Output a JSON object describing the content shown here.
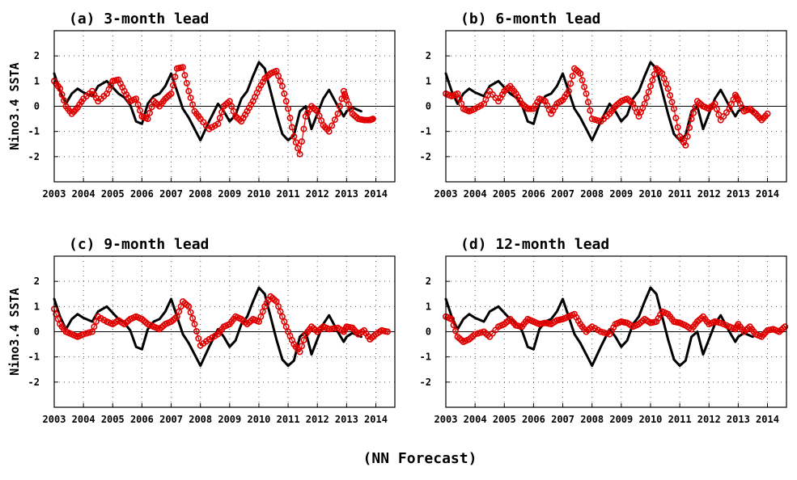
{
  "figure": {
    "footer": "(NN Forecast)",
    "colors": {
      "observed": "#000000",
      "forecast": "#e00000",
      "grid": "#555555",
      "frame": "#000000"
    }
  },
  "chart_data": [
    {
      "type": "line",
      "title": "(a) 3-month lead",
      "ylabel": "Nino3.4 SSTA",
      "xlim": [
        2003.0,
        2014.65
      ],
      "ylim": [
        -3,
        3
      ],
      "x_ticks": [
        2003,
        2004,
        2005,
        2006,
        2007,
        2008,
        2009,
        2010,
        2011,
        2012,
        2013,
        2014
      ],
      "y_ticks": [
        -2,
        -1,
        0,
        1,
        2
      ],
      "grid": true,
      "series": [
        {
          "style": "solid-line",
          "color": "#000000",
          "x": [
            2003.0,
            2003.2,
            2003.4,
            2003.6,
            2003.8,
            2004.0,
            2004.3,
            2004.5,
            2004.8,
            2005.0,
            2005.2,
            2005.4,
            2005.6,
            2005.8,
            2006.0,
            2006.2,
            2006.4,
            2006.6,
            2006.8,
            2007.0,
            2007.2,
            2007.4,
            2007.6,
            2007.8,
            2008.0,
            2008.3,
            2008.6,
            2008.8,
            2009.0,
            2009.2,
            2009.4,
            2009.6,
            2009.8,
            2010.0,
            2010.2,
            2010.4,
            2010.6,
            2010.8,
            2011.0,
            2011.2,
            2011.4,
            2011.6,
            2011.8,
            2012.0,
            2012.2,
            2012.4,
            2012.7,
            2012.9,
            2013.0,
            2013.2,
            2013.4,
            2013.5
          ],
          "y": [
            1.3,
            0.6,
            0.1,
            0.5,
            0.7,
            0.55,
            0.4,
            0.8,
            1.0,
            0.75,
            0.5,
            0.35,
            0.05,
            -0.6,
            -0.7,
            0.1,
            0.4,
            0.5,
            0.8,
            1.3,
            0.6,
            -0.1,
            -0.45,
            -0.9,
            -1.35,
            -0.6,
            0.1,
            -0.2,
            -0.6,
            -0.35,
            0.3,
            0.6,
            1.2,
            1.75,
            1.5,
            0.6,
            -0.3,
            -1.1,
            -1.35,
            -1.15,
            -0.2,
            0.0,
            -0.9,
            -0.3,
            0.3,
            0.65,
            0.0,
            -0.4,
            -0.2,
            -0.05,
            -0.15,
            -0.2
          ]
        },
        {
          "style": "circle-markers",
          "color": "#e00000",
          "x": [
            2003.0,
            2003.2,
            2003.4,
            2003.6,
            2003.8,
            2004.0,
            2004.3,
            2004.5,
            2004.8,
            2005.0,
            2005.2,
            2005.4,
            2005.6,
            2005.8,
            2006.0,
            2006.2,
            2006.4,
            2006.6,
            2006.8,
            2007.0,
            2007.2,
            2007.4,
            2007.6,
            2007.8,
            2008.0,
            2008.3,
            2008.6,
            2008.8,
            2009.0,
            2009.2,
            2009.4,
            2009.6,
            2009.8,
            2010.0,
            2010.2,
            2010.4,
            2010.6,
            2010.8,
            2011.0,
            2011.2,
            2011.4,
            2011.6,
            2011.8,
            2012.0,
            2012.2,
            2012.4,
            2012.7,
            2012.9,
            2013.0,
            2013.2,
            2013.4,
            2013.6,
            2013.8,
            2013.9
          ],
          "y": [
            1.0,
            0.7,
            0.0,
            -0.3,
            -0.05,
            0.3,
            0.6,
            0.2,
            0.5,
            1.0,
            1.05,
            0.6,
            0.2,
            0.3,
            -0.4,
            -0.5,
            0.2,
            0.0,
            0.3,
            0.5,
            1.5,
            1.55,
            0.6,
            -0.2,
            -0.5,
            -0.9,
            -0.7,
            0.0,
            0.2,
            -0.4,
            -0.6,
            -0.2,
            0.2,
            0.7,
            1.1,
            1.3,
            1.4,
            0.8,
            -0.1,
            -1.2,
            -1.9,
            -0.4,
            0.0,
            -0.2,
            -0.75,
            -1.0,
            -0.3,
            0.6,
            0.25,
            -0.3,
            -0.5,
            -0.55,
            -0.55,
            -0.5
          ]
        }
      ]
    },
    {
      "type": "line",
      "title": "(b) 6-month lead",
      "ylabel": "",
      "xlim": [
        2003.0,
        2014.65
      ],
      "ylim": [
        -3,
        3
      ],
      "x_ticks": [
        2003,
        2004,
        2005,
        2006,
        2007,
        2008,
        2009,
        2010,
        2011,
        2012,
        2013,
        2014
      ],
      "y_ticks": [
        -2,
        -1,
        0,
        1,
        2
      ],
      "grid": true,
      "series": [
        {
          "style": "solid-line",
          "color": "#000000",
          "x": [
            2003.0,
            2003.2,
            2003.4,
            2003.6,
            2003.8,
            2004.0,
            2004.3,
            2004.5,
            2004.8,
            2005.0,
            2005.2,
            2005.4,
            2005.6,
            2005.8,
            2006.0,
            2006.2,
            2006.4,
            2006.6,
            2006.8,
            2007.0,
            2007.2,
            2007.4,
            2007.6,
            2007.8,
            2008.0,
            2008.3,
            2008.6,
            2008.8,
            2009.0,
            2009.2,
            2009.4,
            2009.6,
            2009.8,
            2010.0,
            2010.2,
            2010.4,
            2010.6,
            2010.8,
            2011.0,
            2011.2,
            2011.4,
            2011.6,
            2011.8,
            2012.0,
            2012.2,
            2012.4,
            2012.7,
            2012.9,
            2013.0,
            2013.2,
            2013.4,
            2013.5
          ],
          "y": [
            1.3,
            0.6,
            0.1,
            0.5,
            0.7,
            0.55,
            0.4,
            0.8,
            1.0,
            0.75,
            0.5,
            0.35,
            0.05,
            -0.6,
            -0.7,
            0.1,
            0.4,
            0.5,
            0.8,
            1.3,
            0.6,
            -0.1,
            -0.45,
            -0.9,
            -1.35,
            -0.6,
            0.1,
            -0.2,
            -0.6,
            -0.35,
            0.3,
            0.6,
            1.2,
            1.75,
            1.5,
            0.6,
            -0.3,
            -1.1,
            -1.35,
            -1.15,
            -0.2,
            0.0,
            -0.9,
            -0.3,
            0.3,
            0.65,
            0.0,
            -0.4,
            -0.2,
            -0.05,
            -0.15,
            -0.2
          ]
        },
        {
          "style": "circle-markers",
          "color": "#e00000",
          "x": [
            2003.0,
            2003.2,
            2003.4,
            2003.6,
            2003.8,
            2004.0,
            2004.3,
            2004.5,
            2004.8,
            2005.0,
            2005.2,
            2005.4,
            2005.6,
            2005.8,
            2006.0,
            2006.2,
            2006.4,
            2006.6,
            2006.8,
            2007.0,
            2007.2,
            2007.4,
            2007.6,
            2007.8,
            2008.0,
            2008.3,
            2008.6,
            2008.8,
            2009.0,
            2009.2,
            2009.4,
            2009.6,
            2009.8,
            2010.0,
            2010.2,
            2010.4,
            2010.6,
            2010.8,
            2011.0,
            2011.2,
            2011.4,
            2011.6,
            2011.8,
            2012.0,
            2012.2,
            2012.4,
            2012.7,
            2012.9,
            2013.0,
            2013.2,
            2013.4,
            2013.6,
            2013.8,
            2014.0
          ],
          "y": [
            0.5,
            0.4,
            0.5,
            -0.1,
            -0.2,
            -0.1,
            0.1,
            0.6,
            0.2,
            0.6,
            0.8,
            0.5,
            0.1,
            -0.1,
            -0.1,
            0.3,
            0.2,
            -0.3,
            0.1,
            0.25,
            0.6,
            1.5,
            1.3,
            0.5,
            -0.5,
            -0.6,
            -0.3,
            0.0,
            0.2,
            0.3,
            0.1,
            -0.4,
            0.1,
            0.8,
            1.5,
            1.3,
            0.7,
            -0.1,
            -1.2,
            -1.55,
            -0.5,
            0.2,
            0.0,
            -0.1,
            0.1,
            -0.55,
            -0.1,
            0.45,
            0.25,
            -0.2,
            -0.1,
            -0.3,
            -0.55,
            -0.3
          ]
        }
      ]
    },
    {
      "type": "line",
      "title": "(c) 9-month lead",
      "ylabel": "Nino3.4 SSTA",
      "xlim": [
        2003.0,
        2014.65
      ],
      "ylim": [
        -3,
        3
      ],
      "x_ticks": [
        2003,
        2004,
        2005,
        2006,
        2007,
        2008,
        2009,
        2010,
        2011,
        2012,
        2013,
        2014
      ],
      "y_ticks": [
        -2,
        -1,
        0,
        1,
        2
      ],
      "grid": true,
      "series": [
        {
          "style": "solid-line",
          "color": "#000000",
          "x": [
            2003.0,
            2003.2,
            2003.4,
            2003.6,
            2003.8,
            2004.0,
            2004.3,
            2004.5,
            2004.8,
            2005.0,
            2005.2,
            2005.4,
            2005.6,
            2005.8,
            2006.0,
            2006.2,
            2006.4,
            2006.6,
            2006.8,
            2007.0,
            2007.2,
            2007.4,
            2007.6,
            2007.8,
            2008.0,
            2008.3,
            2008.6,
            2008.8,
            2009.0,
            2009.2,
            2009.4,
            2009.6,
            2009.8,
            2010.0,
            2010.2,
            2010.4,
            2010.6,
            2010.8,
            2011.0,
            2011.2,
            2011.4,
            2011.6,
            2011.8,
            2012.0,
            2012.2,
            2012.4,
            2012.7,
            2012.9,
            2013.0,
            2013.2,
            2013.4,
            2013.5
          ],
          "y": [
            1.3,
            0.6,
            0.1,
            0.5,
            0.7,
            0.55,
            0.4,
            0.8,
            1.0,
            0.75,
            0.5,
            0.35,
            0.05,
            -0.6,
            -0.7,
            0.1,
            0.4,
            0.5,
            0.8,
            1.3,
            0.6,
            -0.1,
            -0.45,
            -0.9,
            -1.35,
            -0.6,
            0.1,
            -0.2,
            -0.6,
            -0.35,
            0.3,
            0.6,
            1.2,
            1.75,
            1.5,
            0.6,
            -0.3,
            -1.1,
            -1.35,
            -1.15,
            -0.2,
            0.0,
            -0.9,
            -0.3,
            0.3,
            0.65,
            0.0,
            -0.4,
            -0.2,
            -0.05,
            -0.15,
            -0.2
          ]
        },
        {
          "style": "circle-markers",
          "color": "#e00000",
          "x": [
            2003.0,
            2003.2,
            2003.4,
            2003.6,
            2003.8,
            2004.0,
            2004.3,
            2004.5,
            2004.8,
            2005.0,
            2005.2,
            2005.4,
            2005.6,
            2005.8,
            2006.0,
            2006.2,
            2006.4,
            2006.6,
            2006.8,
            2007.0,
            2007.2,
            2007.4,
            2007.6,
            2007.8,
            2008.0,
            2008.3,
            2008.6,
            2008.8,
            2009.0,
            2009.2,
            2009.4,
            2009.6,
            2009.8,
            2010.0,
            2010.2,
            2010.4,
            2010.6,
            2010.8,
            2011.0,
            2011.2,
            2011.4,
            2011.6,
            2011.8,
            2012.0,
            2012.2,
            2012.4,
            2012.7,
            2012.9,
            2013.0,
            2013.2,
            2013.4,
            2013.6,
            2013.8,
            2014.0,
            2014.2,
            2014.4
          ],
          "y": [
            0.9,
            0.3,
            0.0,
            -0.1,
            -0.2,
            -0.1,
            0.0,
            0.6,
            0.4,
            0.3,
            0.45,
            0.3,
            0.5,
            0.6,
            0.5,
            0.3,
            0.2,
            0.1,
            0.3,
            0.4,
            0.6,
            1.2,
            1.0,
            0.3,
            -0.55,
            -0.3,
            -0.1,
            0.2,
            0.3,
            0.6,
            0.5,
            0.3,
            0.5,
            0.4,
            1.0,
            1.4,
            1.2,
            0.6,
            0.0,
            -0.5,
            -0.8,
            -0.1,
            0.2,
            0.0,
            0.2,
            0.1,
            0.15,
            0.0,
            0.2,
            0.15,
            -0.1,
            0.05,
            -0.3,
            -0.1,
            0.05,
            0.0
          ]
        }
      ]
    },
    {
      "type": "line",
      "title": "(d) 12-month lead",
      "ylabel": "",
      "xlim": [
        2003.0,
        2014.65
      ],
      "ylim": [
        -3,
        3
      ],
      "x_ticks": [
        2003,
        2004,
        2005,
        2006,
        2007,
        2008,
        2009,
        2010,
        2011,
        2012,
        2013,
        2014
      ],
      "y_ticks": [
        -2,
        -1,
        0,
        1,
        2
      ],
      "grid": true,
      "series": [
        {
          "style": "solid-line",
          "color": "#000000",
          "x": [
            2003.0,
            2003.2,
            2003.4,
            2003.6,
            2003.8,
            2004.0,
            2004.3,
            2004.5,
            2004.8,
            2005.0,
            2005.2,
            2005.4,
            2005.6,
            2005.8,
            2006.0,
            2006.2,
            2006.4,
            2006.6,
            2006.8,
            2007.0,
            2007.2,
            2007.4,
            2007.6,
            2007.8,
            2008.0,
            2008.3,
            2008.6,
            2008.8,
            2009.0,
            2009.2,
            2009.4,
            2009.6,
            2009.8,
            2010.0,
            2010.2,
            2010.4,
            2010.6,
            2010.8,
            2011.0,
            2011.2,
            2011.4,
            2011.6,
            2011.8,
            2012.0,
            2012.2,
            2012.4,
            2012.7,
            2012.9,
            2013.0,
            2013.2,
            2013.4,
            2013.5
          ],
          "y": [
            1.3,
            0.6,
            0.1,
            0.5,
            0.7,
            0.55,
            0.4,
            0.8,
            1.0,
            0.75,
            0.5,
            0.35,
            0.05,
            -0.6,
            -0.7,
            0.1,
            0.4,
            0.5,
            0.8,
            1.3,
            0.6,
            -0.1,
            -0.45,
            -0.9,
            -1.35,
            -0.6,
            0.1,
            -0.2,
            -0.6,
            -0.35,
            0.3,
            0.6,
            1.2,
            1.75,
            1.5,
            0.6,
            -0.3,
            -1.1,
            -1.35,
            -1.15,
            -0.2,
            0.0,
            -0.9,
            -0.3,
            0.3,
            0.65,
            0.0,
            -0.4,
            -0.2,
            -0.05,
            -0.15,
            -0.2
          ]
        },
        {
          "style": "circle-markers",
          "color": "#e00000",
          "x": [
            2003.0,
            2003.2,
            2003.4,
            2003.6,
            2003.8,
            2004.0,
            2004.3,
            2004.5,
            2004.8,
            2005.0,
            2005.2,
            2005.4,
            2005.6,
            2005.8,
            2006.0,
            2006.2,
            2006.4,
            2006.6,
            2006.8,
            2007.0,
            2007.2,
            2007.4,
            2007.6,
            2007.8,
            2008.0,
            2008.3,
            2008.6,
            2008.8,
            2009.0,
            2009.2,
            2009.4,
            2009.6,
            2009.8,
            2010.0,
            2010.2,
            2010.4,
            2010.6,
            2010.8,
            2011.0,
            2011.2,
            2011.4,
            2011.6,
            2011.8,
            2012.0,
            2012.2,
            2012.4,
            2012.7,
            2012.9,
            2013.0,
            2013.2,
            2013.4,
            2013.6,
            2013.8,
            2014.0,
            2014.2,
            2014.4,
            2014.6
          ],
          "y": [
            0.6,
            0.5,
            -0.2,
            -0.4,
            -0.3,
            -0.1,
            0.0,
            -0.2,
            0.2,
            0.3,
            0.5,
            0.25,
            0.2,
            0.5,
            0.4,
            0.3,
            0.35,
            0.3,
            0.45,
            0.5,
            0.6,
            0.7,
            0.3,
            0.0,
            0.2,
            0.0,
            -0.1,
            0.3,
            0.4,
            0.35,
            0.2,
            0.3,
            0.5,
            0.35,
            0.4,
            0.8,
            0.7,
            0.4,
            0.35,
            0.25,
            0.1,
            0.4,
            0.6,
            0.3,
            0.4,
            0.35,
            0.2,
            0.1,
            0.3,
            0.0,
            0.2,
            -0.1,
            -0.2,
            0.05,
            0.1,
            0.0,
            0.2
          ]
        }
      ]
    }
  ]
}
